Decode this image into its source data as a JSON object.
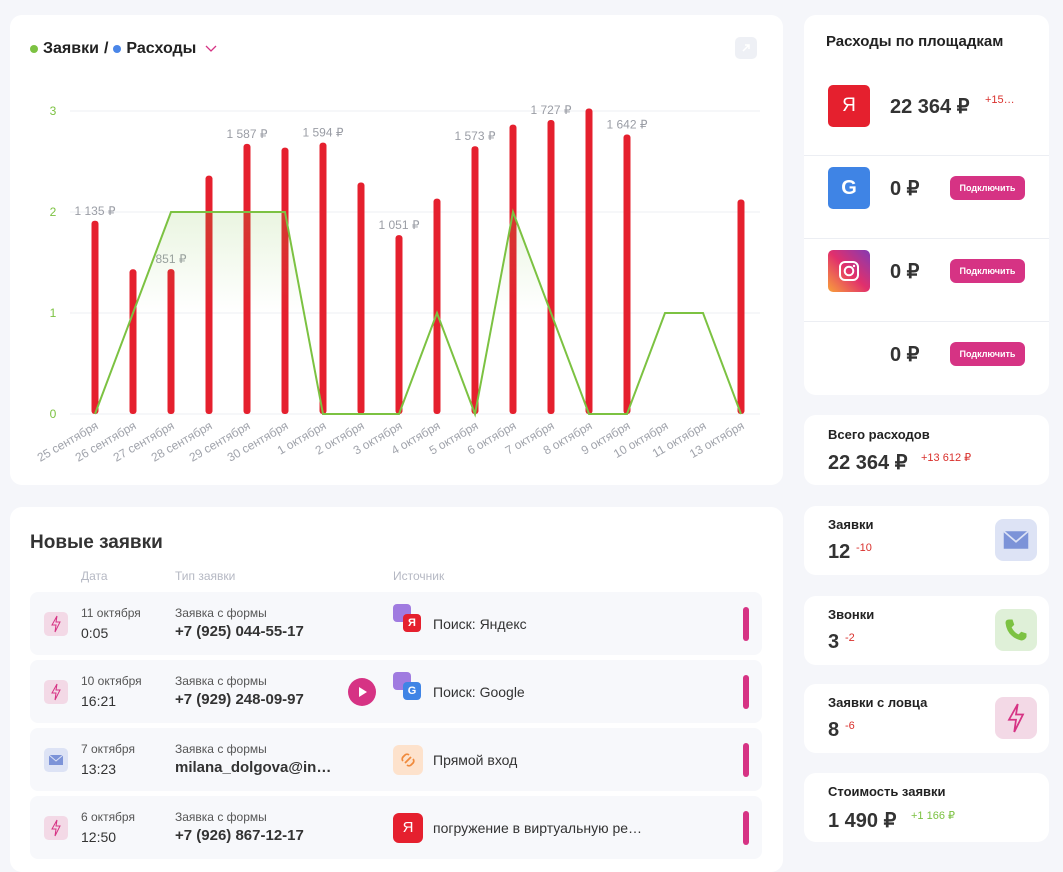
{
  "chart_data": {
    "type": "combo",
    "legend_separator": "/",
    "categories": [
      "25 сентября",
      "26 сентября",
      "27 сентября",
      "28 сентября",
      "29 сентября",
      "30 сентября",
      "1 октября",
      "2 октября",
      "3 октября",
      "4 октября",
      "5 октября",
      "6 октября",
      "7 октября",
      "8 октября",
      "9 октября",
      "10 октября",
      "11 октября",
      "13 октября"
    ],
    "series": [
      {
        "name": "Заявки",
        "mark": "line",
        "color": "#7cc242",
        "legend_color": "#7cc242",
        "values": [
          0,
          1,
          2,
          2,
          2,
          2,
          0,
          0,
          0,
          1,
          0,
          2,
          1,
          0,
          0,
          1,
          1,
          0
        ]
      },
      {
        "name": "Расходы",
        "mark": "bar",
        "axis": "y2",
        "color": "#e5202e",
        "legend_color": "#4a86e8",
        "values": [
          1135,
          850,
          851,
          1400,
          1587,
          1565,
          1594,
          1360,
          1051,
          1265,
          1573,
          1700,
          1727,
          1795,
          1642,
          0,
          0,
          1260
        ],
        "value_labels": [
          "1 135 ₽",
          null,
          "851 ₽",
          null,
          "1 587 ₽",
          null,
          "1 594 ₽",
          null,
          "1 051 ₽",
          null,
          "1 573 ₽",
          null,
          "1 727 ₽",
          null,
          "1 642 ₽",
          null,
          null,
          null
        ]
      }
    ],
    "ylim": [
      0,
      3
    ],
    "yticks": [
      0,
      1,
      2,
      3
    ],
    "y2lim": [
      0,
      1780
    ],
    "grid": true
  },
  "platforms": {
    "title": "Расходы по площадкам",
    "items": [
      {
        "icon": "yandex",
        "badge": "Я",
        "amount": "22 364 ₽",
        "change": "+15…",
        "change_color": "#d9302c"
      },
      {
        "icon": "google",
        "badge": "G",
        "amount": "0 ₽",
        "button": "Подключить"
      },
      {
        "icon": "instagram",
        "amount": "0 ₽",
        "button": "Подключить"
      },
      {
        "icon": "none",
        "amount": "0 ₽",
        "button": "Подключить"
      }
    ]
  },
  "total": {
    "label": "Всего расходов",
    "value": "22 364 ₽",
    "change": "+13 612 ₽",
    "change_color": "#d9302c"
  },
  "stats": [
    {
      "label": "Заявки",
      "value": "12",
      "change": "-10",
      "change_color": "#d9302c",
      "icon": "mail"
    },
    {
      "label": "Звонки",
      "value": "3",
      "change": "-2",
      "change_color": "#d9302c",
      "icon": "phone"
    },
    {
      "label": "Заявки с ловца",
      "value": "8",
      "change": "-6",
      "change_color": "#d9302c",
      "icon": "lead"
    },
    {
      "label": "Стоимость заявки",
      "value": "1 490 ₽",
      "change": "+1 166 ₽",
      "change_color": "#7cc242",
      "icon": "none"
    }
  ],
  "leads": {
    "title": "Новые заявки",
    "headers": [
      "Дата",
      "Тип заявки",
      "Источник"
    ],
    "rows": [
      {
        "icon": "lead",
        "date": "11 октября",
        "time": "0:05",
        "type": "Заявка с формы",
        "contact": "+7 (925) 044-55-17",
        "source_icon": "search",
        "source_badge": "Я",
        "source": "Поиск: Яндекс",
        "has_record": false
      },
      {
        "icon": "lead",
        "date": "10 октября",
        "time": "16:21",
        "type": "Заявка с формы",
        "contact": "+7 (929) 248-09-97",
        "source_icon": "search",
        "source_badge": "G",
        "source": "Поиск: Google",
        "has_record": true
      },
      {
        "icon": "mail",
        "date": "7 октября",
        "time": "13:23",
        "type": "Заявка с формы",
        "contact": "milana_dolgova@in…",
        "source_icon": "direct",
        "source": "Прямой вход",
        "has_record": false
      },
      {
        "icon": "lead",
        "date": "6 октября",
        "time": "12:50",
        "type": "Заявка с формы",
        "contact": "+7 (926) 867-12-17",
        "source_icon": "yandex",
        "source_badge": "Я",
        "source": "погружение в виртуальную ре…",
        "has_record": false
      }
    ]
  }
}
